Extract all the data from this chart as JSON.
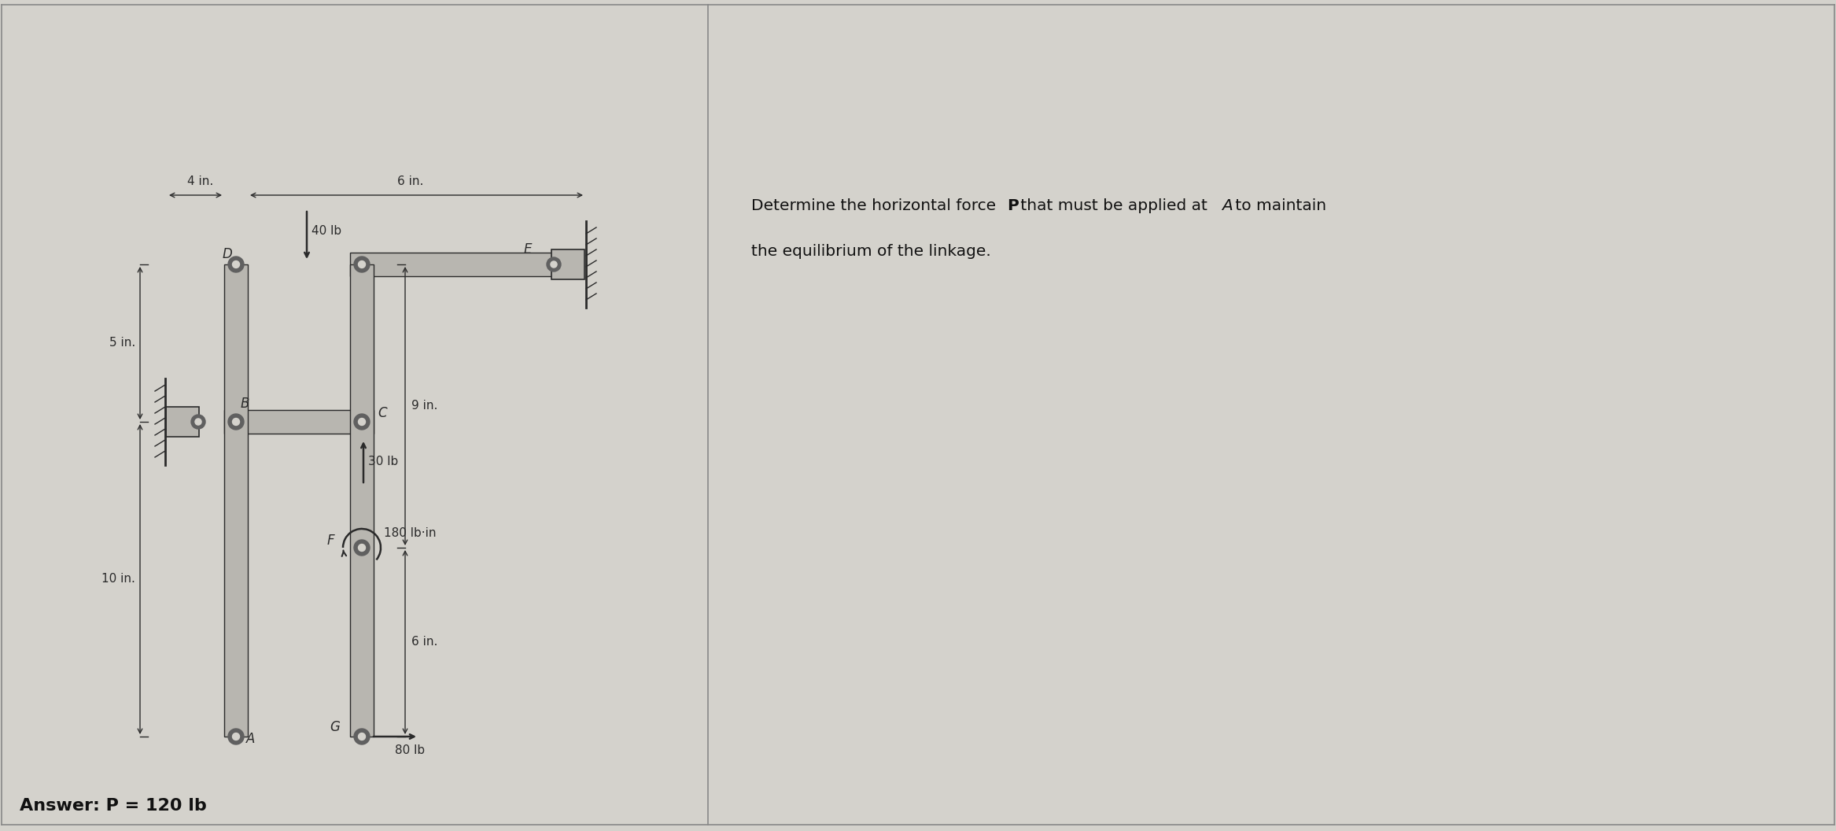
{
  "bg_color": "#d4d2cc",
  "fig_width": 23.34,
  "fig_height": 10.56,
  "dpi": 100,
  "answer_text": "Answer: P = 120 lb",
  "dim_4in": "4 in.",
  "dim_6in": "6 in.",
  "dim_5in": "5 in.",
  "dim_10in": "10 in.",
  "dim_9in": "9 in.",
  "dim_6in_b": "6 in.",
  "label_D": "D",
  "label_E": "E",
  "label_B": "B",
  "label_C": "C",
  "label_F": "F",
  "label_G": "G",
  "label_A": "A",
  "force_40lb": "40 lb",
  "force_30lb": "30 lb",
  "force_80lb": "80 lb",
  "force_180lbin": "180 lb·in",
  "link_color": "#b8b6b0",
  "line_color": "#2a2a2a",
  "pin_color": "#606060",
  "pin_hole": "#d4d2cc",
  "scale": 0.4
}
